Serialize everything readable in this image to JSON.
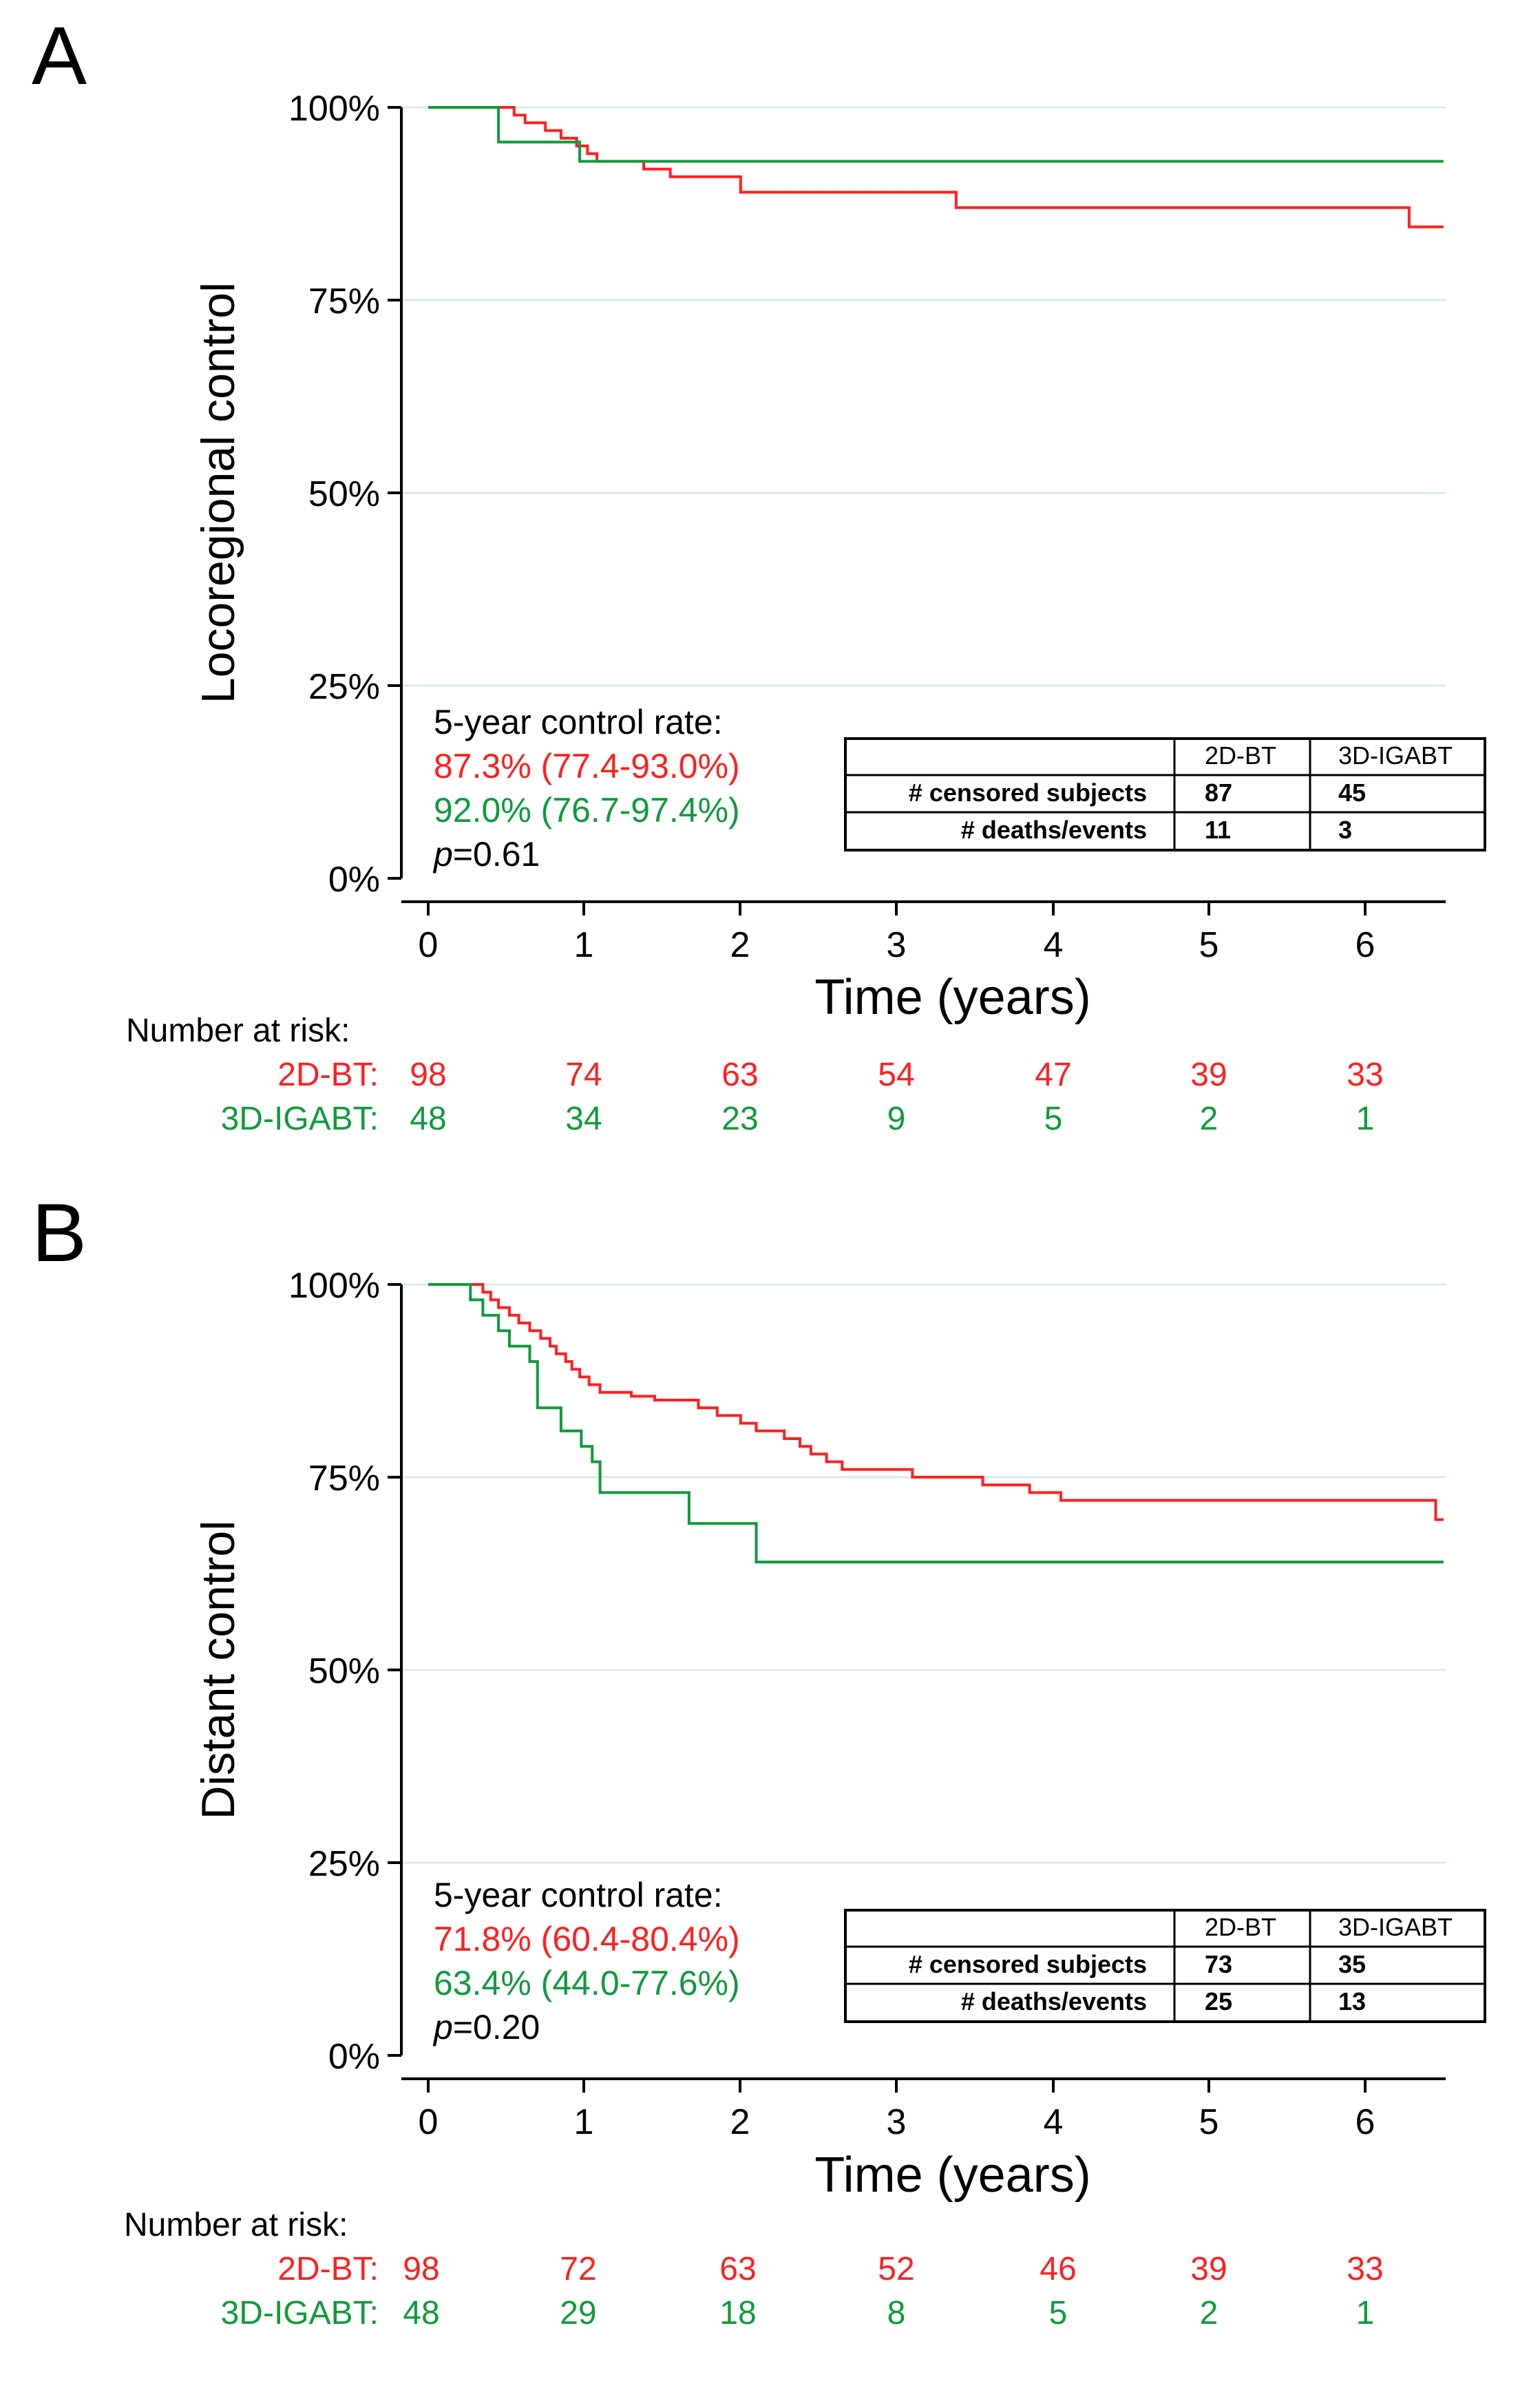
{
  "colors": {
    "red": "#ff2020",
    "green": "#109a3c",
    "black": "#000000",
    "grid": "#d9ece6"
  },
  "panels": [
    {
      "letter": "A",
      "ylabel": "Locoregional control",
      "xlabel": "Time (years)",
      "yticks": [
        "0%",
        "25%",
        "50%",
        "75%",
        "100%"
      ],
      "xticks": [
        "0",
        "1",
        "2",
        "3",
        "4",
        "5",
        "6"
      ],
      "stats": {
        "heading": "5-year control rate:",
        "red": "87.3% (77.4-93.0%)",
        "green": "92.0% (76.7-97.4%)",
        "p_label": "p",
        "p_value": "=0.61"
      },
      "table": {
        "headers": [
          "",
          "2D-BT",
          "3D-IGABT"
        ],
        "rows": [
          [
            "# censored subjects",
            "87",
            "45"
          ],
          [
            "# deaths/events",
            "11",
            "3"
          ]
        ]
      },
      "risk": {
        "title": "Number at risk:",
        "groups": [
          {
            "label": "2D-BT:",
            "color": "red",
            "values": [
              "98",
              "74",
              "63",
              "54",
              "47",
              "39",
              "33"
            ]
          },
          {
            "label": "3D-IGABT:",
            "color": "green",
            "values": [
              "48",
              "34",
              "23",
              "9",
              "5",
              "2",
              "1"
            ]
          }
        ]
      }
    },
    {
      "letter": "B",
      "ylabel": "Distant control",
      "xlabel": "Time (years)",
      "yticks": [
        "0%",
        "25%",
        "50%",
        "75%",
        "100%"
      ],
      "xticks": [
        "0",
        "1",
        "2",
        "3",
        "4",
        "5",
        "6"
      ],
      "stats": {
        "heading": "5-year control rate:",
        "red": "71.8% (60.4-80.4%)",
        "green": "63.4% (44.0-77.6%)",
        "p_label": "p",
        "p_value": "=0.20"
      },
      "table": {
        "headers": [
          "",
          "2D-BT",
          "3D-IGABT"
        ],
        "rows": [
          [
            "# censored subjects",
            "73",
            "35"
          ],
          [
            "# deaths/events",
            "25",
            "13"
          ]
        ]
      },
      "risk": {
        "title": "Number at risk:",
        "groups": [
          {
            "label": "2D-BT:",
            "color": "red",
            "values": [
              "98",
              "72",
              "63",
              "52",
              "46",
              "39",
              "33"
            ]
          },
          {
            "label": "3D-IGABT:",
            "color": "green",
            "values": [
              "48",
              "29",
              "18",
              "8",
              "5",
              "2",
              "1"
            ]
          }
        ]
      }
    }
  ],
  "chart_data": [
    {
      "type": "line",
      "title": "A",
      "xlabel": "Time (years)",
      "ylabel": "Locoregional control",
      "xlim": [
        0,
        6.5
      ],
      "ylim": [
        0,
        100
      ],
      "series": [
        {
          "name": "2D-BT",
          "color": "red",
          "points": [
            [
              0,
              100
            ],
            [
              0.48,
              100
            ],
            [
              0.55,
              99
            ],
            [
              0.62,
              98
            ],
            [
              0.75,
              97
            ],
            [
              0.85,
              96
            ],
            [
              0.95,
              95
            ],
            [
              1.02,
              94
            ],
            [
              1.08,
              93
            ],
            [
              1.38,
              92
            ],
            [
              1.55,
              91
            ],
            [
              2.0,
              89
            ],
            [
              3.38,
              87
            ],
            [
              6.28,
              87
            ],
            [
              6.28,
              84.5
            ],
            [
              6.5,
              84.5
            ]
          ]
        },
        {
          "name": "3D-IGABT",
          "color": "green",
          "points": [
            [
              0,
              100
            ],
            [
              0.45,
              100
            ],
            [
              0.45,
              95.5
            ],
            [
              0.97,
              95.5
            ],
            [
              0.97,
              93
            ],
            [
              6.5,
              93
            ]
          ]
        }
      ]
    },
    {
      "type": "line",
      "title": "B",
      "xlabel": "Time (years)",
      "ylabel": "Distant control",
      "xlim": [
        0,
        6.5
      ],
      "ylim": [
        0,
        100
      ],
      "series": [
        {
          "name": "2D-BT",
          "color": "red",
          "points": [
            [
              0,
              100
            ],
            [
              0.3,
              100
            ],
            [
              0.35,
              99
            ],
            [
              0.4,
              98
            ],
            [
              0.45,
              97
            ],
            [
              0.52,
              96
            ],
            [
              0.58,
              95
            ],
            [
              0.65,
              94
            ],
            [
              0.72,
              93
            ],
            [
              0.78,
              92
            ],
            [
              0.82,
              91
            ],
            [
              0.88,
              90
            ],
            [
              0.92,
              89
            ],
            [
              0.97,
              88
            ],
            [
              1.03,
              87
            ],
            [
              1.1,
              86
            ],
            [
              1.3,
              85.5
            ],
            [
              1.45,
              85
            ],
            [
              1.73,
              84
            ],
            [
              1.85,
              83
            ],
            [
              2.0,
              82
            ],
            [
              2.1,
              81
            ],
            [
              2.28,
              80
            ],
            [
              2.38,
              79
            ],
            [
              2.45,
              78
            ],
            [
              2.55,
              77
            ],
            [
              2.65,
              76
            ],
            [
              3.0,
              76
            ],
            [
              3.1,
              75
            ],
            [
              3.55,
              74
            ],
            [
              3.85,
              73
            ],
            [
              4.05,
              72
            ],
            [
              4.7,
              72
            ],
            [
              6.45,
              72
            ],
            [
              6.45,
              69.5
            ],
            [
              6.5,
              69.5
            ]
          ]
        },
        {
          "name": "3D-IGABT",
          "color": "green",
          "points": [
            [
              0,
              100
            ],
            [
              0.27,
              100
            ],
            [
              0.27,
              98
            ],
            [
              0.35,
              98
            ],
            [
              0.35,
              96
            ],
            [
              0.45,
              96
            ],
            [
              0.45,
              94
            ],
            [
              0.52,
              94
            ],
            [
              0.52,
              92
            ],
            [
              0.65,
              92
            ],
            [
              0.65,
              90
            ],
            [
              0.7,
              90
            ],
            [
              0.7,
              84
            ],
            [
              0.85,
              84
            ],
            [
              0.85,
              81
            ],
            [
              0.98,
              81
            ],
            [
              0.98,
              79
            ],
            [
              1.05,
              79
            ],
            [
              1.05,
              77
            ],
            [
              1.1,
              77
            ],
            [
              1.1,
              73
            ],
            [
              1.67,
              73
            ],
            [
              1.67,
              69
            ],
            [
              2.1,
              69
            ],
            [
              2.1,
              64
            ],
            [
              6.5,
              64
            ]
          ]
        }
      ]
    }
  ]
}
